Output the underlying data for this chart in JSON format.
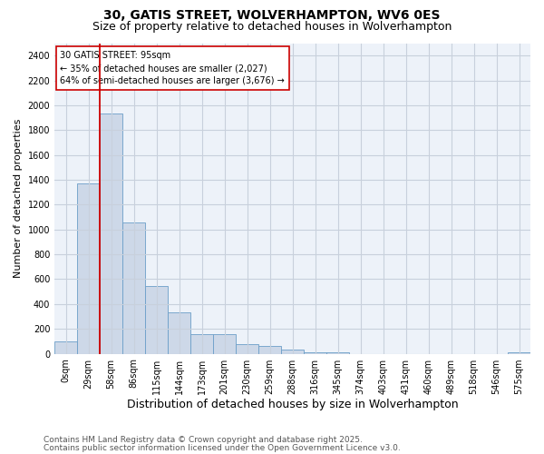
{
  "title": "30, GATIS STREET, WOLVERHAMPTON, WV6 0ES",
  "subtitle": "Size of property relative to detached houses in Wolverhampton",
  "xlabel": "Distribution of detached houses by size in Wolverhampton",
  "ylabel": "Number of detached properties",
  "bar_color": "#cdd8e8",
  "bar_edge_color": "#6b9ec8",
  "background_color": "#ffffff",
  "plot_bg_color": "#edf2f9",
  "grid_color": "#c8d0dc",
  "categories": [
    "0sqm",
    "29sqm",
    "58sqm",
    "86sqm",
    "115sqm",
    "144sqm",
    "173sqm",
    "201sqm",
    "230sqm",
    "259sqm",
    "288sqm",
    "316sqm",
    "345sqm",
    "374sqm",
    "403sqm",
    "431sqm",
    "460sqm",
    "489sqm",
    "518sqm",
    "546sqm",
    "575sqm"
  ],
  "values": [
    100,
    1370,
    1930,
    1060,
    545,
    330,
    160,
    160,
    80,
    60,
    30,
    15,
    8,
    0,
    0,
    0,
    0,
    0,
    0,
    0,
    15
  ],
  "ylim": [
    0,
    2500
  ],
  "yticks": [
    0,
    200,
    400,
    600,
    800,
    1000,
    1200,
    1400,
    1600,
    1800,
    2000,
    2200,
    2400
  ],
  "red_line_index": 2,
  "annotation_title": "30 GATIS STREET: 95sqm",
  "annotation_line1": "← 35% of detached houses are smaller (2,027)",
  "annotation_line2": "64% of semi-detached houses are larger (3,676) →",
  "footnote1": "Contains HM Land Registry data © Crown copyright and database right 2025.",
  "footnote2": "Contains public sector information licensed under the Open Government Licence v3.0.",
  "title_fontsize": 10,
  "subtitle_fontsize": 9,
  "annot_fontsize": 7,
  "footnote_fontsize": 6.5,
  "ylabel_fontsize": 8,
  "xlabel_fontsize": 9,
  "tick_fontsize": 7
}
